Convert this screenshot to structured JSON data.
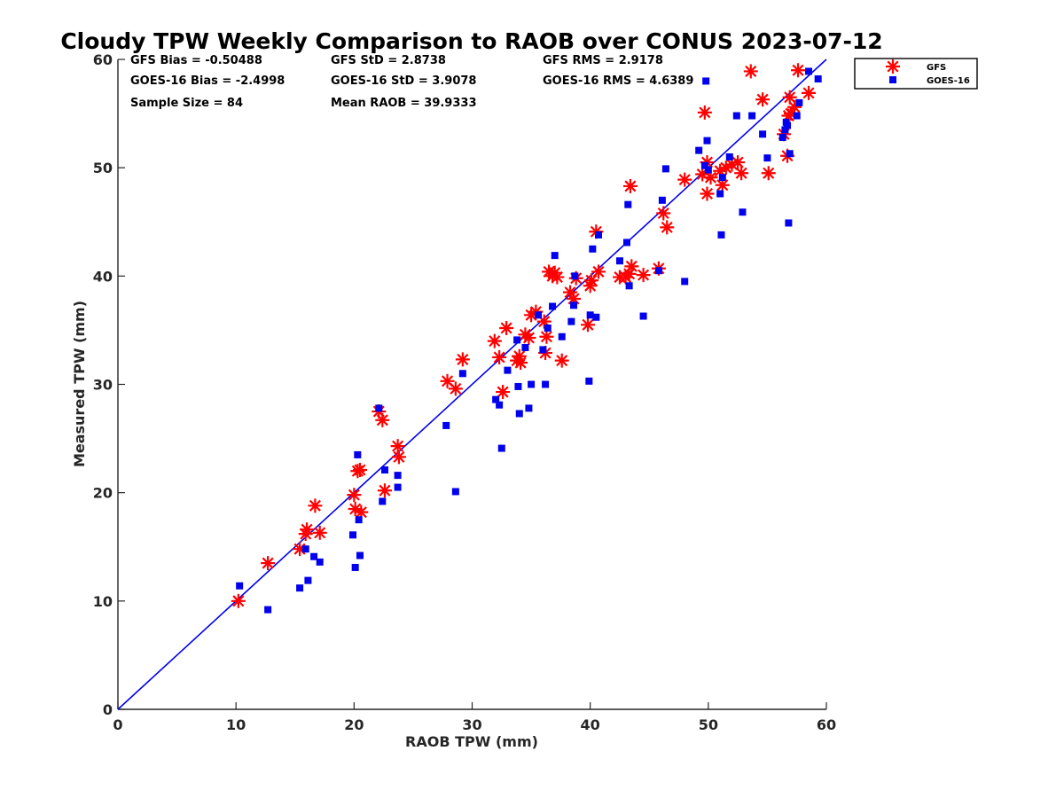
{
  "chart_data": {
    "type": "scatter",
    "title": "Cloudy TPW Weekly Comparison to RAOB over CONUS 2023-07-12",
    "xlabel": "RAOB TPW (mm)",
    "ylabel": "Measured TPW (mm)",
    "xlim": [
      0,
      60
    ],
    "ylim": [
      0,
      60
    ],
    "xticks": [
      "0",
      "10",
      "20",
      "30",
      "40",
      "50",
      "60"
    ],
    "yticks": [
      "0",
      "10",
      "20",
      "30",
      "40",
      "50",
      "60"
    ],
    "grid": false,
    "legend_position": "top-right outside",
    "reference_line": [
      [
        0,
        0
      ],
      [
        60,
        60
      ]
    ],
    "stats": {
      "gfs_bias": "GFS Bias = -0.50488",
      "gfs_std": "GFS StD = 2.8738",
      "gfs_rms": "GFS RMS = 2.9178",
      "goes_bias": "GOES-16 Bias = -2.4998",
      "goes_std": "GOES-16 StD = 3.9078",
      "goes_rms": "GOES-16 RMS = 4.6389",
      "sample_size": "Sample Size = 84",
      "mean_raob": "Mean RAOB = 39.9333"
    },
    "series": [
      {
        "name": "GFS",
        "color": "#ff0000",
        "marker": "asterisk",
        "points": [
          [
            10.2,
            10.0
          ],
          [
            12.7,
            13.5
          ],
          [
            15.4,
            14.8
          ],
          [
            15.9,
            16.2
          ],
          [
            16.0,
            16.6
          ],
          [
            16.7,
            18.8
          ],
          [
            17.1,
            16.3
          ],
          [
            20.0,
            19.8
          ],
          [
            20.1,
            18.5
          ],
          [
            20.3,
            22.0
          ],
          [
            20.5,
            22.1
          ],
          [
            20.6,
            18.2
          ],
          [
            22.1,
            27.5
          ],
          [
            22.4,
            26.7
          ],
          [
            22.6,
            20.2
          ],
          [
            23.7,
            24.3
          ],
          [
            23.8,
            23.3
          ],
          [
            27.9,
            30.3
          ],
          [
            28.6,
            29.6
          ],
          [
            29.2,
            32.3
          ],
          [
            31.9,
            34.0
          ],
          [
            32.3,
            32.5
          ],
          [
            32.6,
            29.3
          ],
          [
            32.9,
            35.2
          ],
          [
            33.8,
            32.2
          ],
          [
            34.0,
            32.6
          ],
          [
            34.1,
            32.0
          ],
          [
            34.5,
            34.6
          ],
          [
            34.8,
            34.3
          ],
          [
            35.0,
            36.4
          ],
          [
            35.4,
            36.7
          ],
          [
            36.1,
            35.8
          ],
          [
            36.2,
            32.9
          ],
          [
            36.3,
            34.4
          ],
          [
            36.5,
            40.4
          ],
          [
            36.8,
            40.0
          ],
          [
            37.0,
            40.3
          ],
          [
            37.2,
            39.9
          ],
          [
            37.6,
            32.2
          ],
          [
            38.3,
            38.5
          ],
          [
            38.6,
            37.9
          ],
          [
            38.8,
            39.8
          ],
          [
            39.8,
            35.5
          ],
          [
            40.0,
            39.1
          ],
          [
            40.1,
            39.6
          ],
          [
            40.5,
            44.1
          ],
          [
            40.7,
            40.4
          ],
          [
            42.5,
            39.9
          ],
          [
            43.0,
            39.9
          ],
          [
            43.3,
            40.2
          ],
          [
            43.4,
            48.3
          ],
          [
            43.5,
            40.9
          ],
          [
            44.5,
            40.1
          ],
          [
            45.8,
            40.7
          ],
          [
            46.2,
            45.8
          ],
          [
            46.5,
            44.5
          ],
          [
            48.0,
            48.9
          ],
          [
            49.5,
            49.4
          ],
          [
            49.7,
            55.1
          ],
          [
            49.9,
            50.5
          ],
          [
            49.9,
            47.6
          ],
          [
            50.2,
            49.1
          ],
          [
            51.0,
            49.7
          ],
          [
            51.2,
            48.4
          ],
          [
            51.5,
            50.0
          ],
          [
            52.0,
            50.3
          ],
          [
            52.5,
            50.5
          ],
          [
            52.8,
            49.5
          ],
          [
            53.6,
            58.9
          ],
          [
            54.6,
            56.3
          ],
          [
            55.1,
            49.5
          ],
          [
            56.4,
            53.1
          ],
          [
            56.7,
            51.1
          ],
          [
            56.8,
            54.8
          ],
          [
            56.9,
            56.5
          ],
          [
            57.0,
            55.0
          ],
          [
            57.3,
            55.6
          ],
          [
            57.6,
            59.0
          ],
          [
            58.5,
            56.9
          ]
        ]
      },
      {
        "name": "GOES-16",
        "color": "#0000ee",
        "marker": "square",
        "points": [
          [
            10.3,
            11.4
          ],
          [
            12.7,
            9.2
          ],
          [
            15.4,
            11.2
          ],
          [
            15.9,
            14.8
          ],
          [
            16.1,
            11.9
          ],
          [
            16.6,
            14.1
          ],
          [
            17.1,
            13.6
          ],
          [
            19.9,
            16.1
          ],
          [
            20.1,
            13.1
          ],
          [
            20.3,
            23.5
          ],
          [
            20.4,
            17.5
          ],
          [
            20.5,
            14.2
          ],
          [
            22.1,
            27.8
          ],
          [
            22.4,
            19.2
          ],
          [
            22.6,
            22.1
          ],
          [
            23.7,
            21.6
          ],
          [
            23.7,
            20.5
          ],
          [
            27.8,
            26.2
          ],
          [
            28.6,
            20.1
          ],
          [
            29.2,
            31.0
          ],
          [
            32.0,
            28.6
          ],
          [
            32.3,
            28.1
          ],
          [
            32.5,
            24.1
          ],
          [
            33.0,
            31.3
          ],
          [
            33.8,
            34.1
          ],
          [
            33.9,
            29.8
          ],
          [
            34.0,
            27.3
          ],
          [
            34.5,
            33.4
          ],
          [
            34.8,
            27.8
          ],
          [
            35.0,
            30.0
          ],
          [
            35.6,
            36.4
          ],
          [
            36.0,
            33.2
          ],
          [
            36.2,
            30.0
          ],
          [
            36.4,
            35.2
          ],
          [
            36.8,
            37.2
          ],
          [
            37.0,
            41.9
          ],
          [
            37.6,
            34.4
          ],
          [
            38.4,
            35.8
          ],
          [
            38.6,
            37.3
          ],
          [
            38.7,
            40.0
          ],
          [
            39.9,
            30.3
          ],
          [
            40.0,
            36.4
          ],
          [
            40.2,
            42.5
          ],
          [
            40.5,
            36.2
          ],
          [
            40.7,
            43.8
          ],
          [
            42.5,
            41.4
          ],
          [
            43.1,
            43.1
          ],
          [
            43.2,
            46.6
          ],
          [
            43.3,
            39.1
          ],
          [
            44.5,
            36.3
          ],
          [
            45.8,
            40.5
          ],
          [
            46.1,
            47.0
          ],
          [
            46.4,
            49.9
          ],
          [
            48.0,
            39.5
          ],
          [
            49.2,
            51.6
          ],
          [
            49.7,
            50.2
          ],
          [
            49.8,
            58.0
          ],
          [
            49.9,
            52.5
          ],
          [
            50.0,
            49.8
          ],
          [
            51.0,
            47.6
          ],
          [
            51.1,
            43.8
          ],
          [
            51.2,
            49.1
          ],
          [
            51.8,
            51.0
          ],
          [
            52.4,
            54.8
          ],
          [
            52.9,
            45.9
          ],
          [
            53.7,
            54.8
          ],
          [
            54.6,
            53.1
          ],
          [
            55.0,
            50.9
          ],
          [
            56.3,
            52.8
          ],
          [
            56.5,
            53.5
          ],
          [
            56.6,
            54.2
          ],
          [
            56.7,
            53.9
          ],
          [
            56.8,
            44.9
          ],
          [
            56.9,
            51.3
          ],
          [
            57.5,
            54.8
          ],
          [
            57.7,
            56.0
          ],
          [
            58.5,
            58.9
          ],
          [
            59.3,
            58.2
          ]
        ]
      }
    ]
  }
}
